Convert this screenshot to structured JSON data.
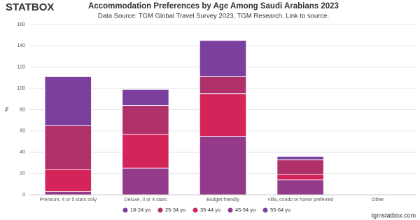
{
  "logo": "STATBOX",
  "footer": "tgmstatbox.com",
  "chart_data": {
    "type": "stacked_bar",
    "title": "Accommodation Preferences by Age Among Saudi Arabians 2023",
    "subtitle": "Data Source: TGM Global Travel Survey 2023, TGM Research. Link to source.",
    "y_label": "%",
    "categories": [
      "Premium, 4 or 5 stars only",
      "Deluxe, 3 or 4 stars",
      "Budget friendly",
      "Villa, condo or home preferred",
      "Other"
    ],
    "series": [
      {
        "name": "18-24 yo",
        "color": "#7b3f9e",
        "values": [
          46,
          15,
          34,
          3,
          0
        ]
      },
      {
        "name": "25-34 yo",
        "color": "#b0306a",
        "values": [
          41,
          27,
          16,
          14,
          0
        ]
      },
      {
        "name": "35-44 yo",
        "color": "#d4245a",
        "values": [
          21,
          32,
          40,
          5,
          0
        ]
      },
      {
        "name": "45-54 yo",
        "color": "#943a8a",
        "values": [
          3,
          25,
          55,
          14,
          0
        ]
      },
      {
        "name": "55-64 yo",
        "color": "#7e3fa3",
        "values": [
          0,
          0,
          0,
          0,
          0
        ]
      }
    ],
    "ylim": [
      0,
      160
    ],
    "yticks": [
      0,
      20,
      40,
      60,
      80,
      100,
      120,
      140,
      160
    ],
    "grid": true
  }
}
